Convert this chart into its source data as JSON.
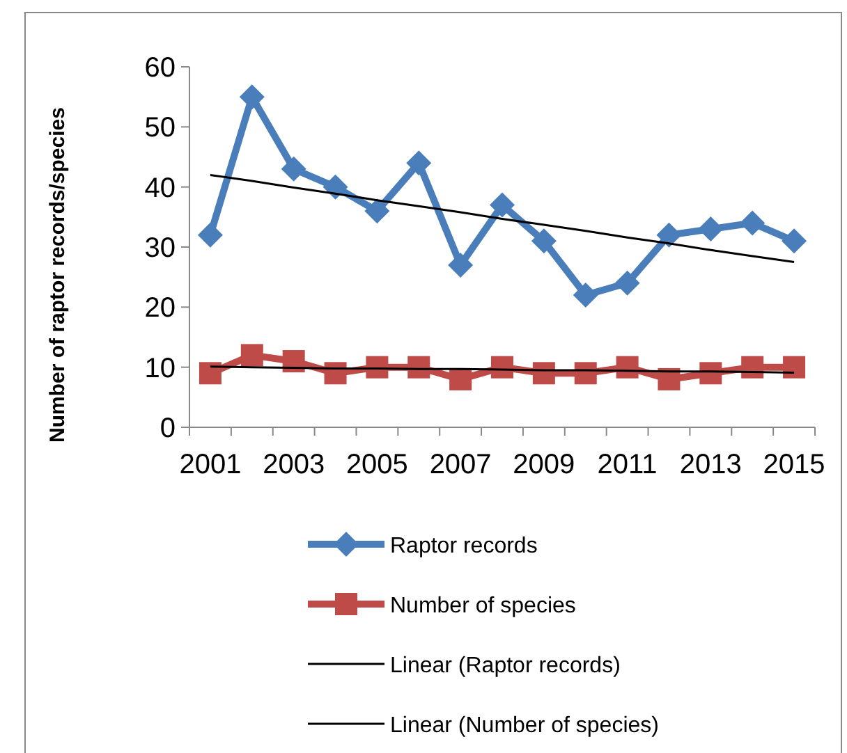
{
  "chart_data": {
    "type": "line",
    "ylabel": "Number of raptor records/species",
    "categories": [
      "2001",
      null,
      "2003",
      null,
      "2005",
      null,
      "2007",
      null,
      "2009",
      null,
      "2011",
      null,
      "2013",
      null,
      "2015"
    ],
    "ylim": [
      0,
      60
    ],
    "yticks": [
      0,
      10,
      20,
      30,
      40,
      50,
      60
    ],
    "grid": false,
    "legend": "bottom",
    "series": [
      {
        "name": "Raptor records",
        "color": "#4a7ebb",
        "marker": "diamond",
        "values": [
          32,
          55,
          43,
          40,
          36,
          44,
          27,
          37,
          31,
          22,
          24,
          32,
          33,
          34,
          31
        ]
      },
      {
        "name": "Number  of species",
        "color": "#be4b48",
        "marker": "square",
        "values": [
          9,
          12,
          11,
          9,
          10,
          10,
          8,
          10,
          9,
          9,
          10,
          8,
          9,
          10,
          10
        ]
      },
      {
        "name": "Linear (Raptor records)",
        "color": "#000000",
        "marker": "none",
        "values": [
          42.0,
          41.0,
          39.9,
          38.9,
          37.8,
          36.8,
          35.8,
          34.7,
          33.7,
          32.7,
          31.6,
          30.6,
          29.5,
          28.5,
          27.5
        ]
      },
      {
        "name": "Linear (Number  of species)",
        "color": "#000000",
        "marker": "none",
        "values": [
          10.1,
          10.0,
          9.9,
          9.8,
          9.8,
          9.7,
          9.7,
          9.6,
          9.5,
          9.5,
          9.4,
          9.3,
          9.3,
          9.2,
          9.1
        ]
      }
    ]
  }
}
